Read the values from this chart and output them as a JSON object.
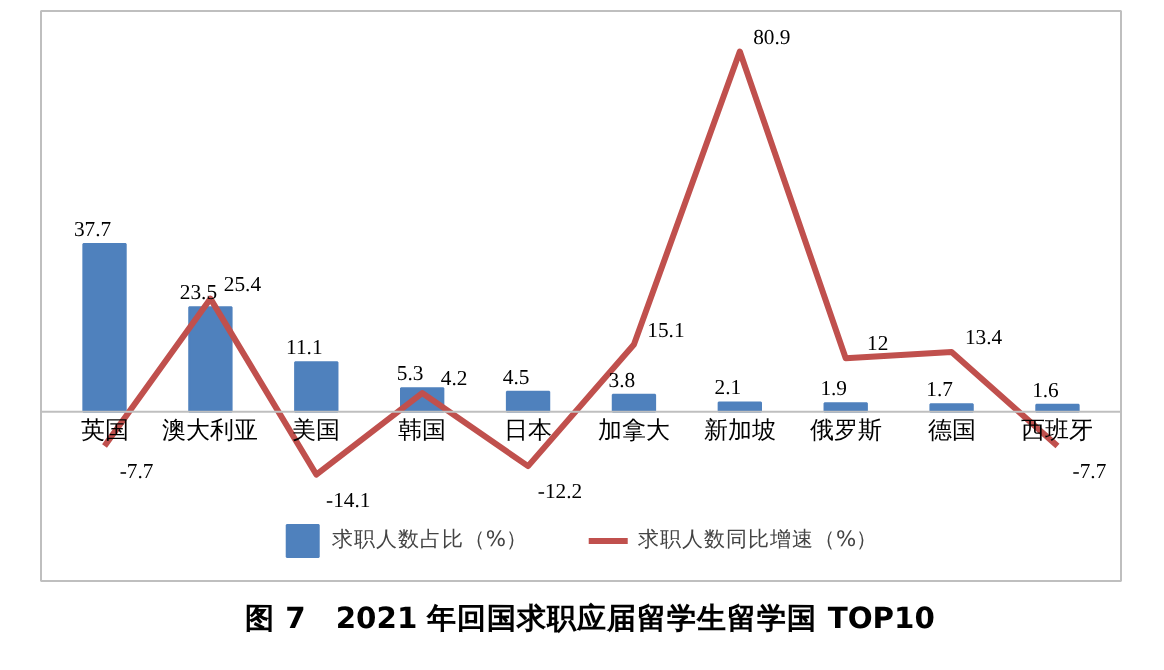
{
  "chart_data": {
    "type": "bar",
    "title": "图 7　2021 年回国求职应届留学生留学国 TOP10",
    "categories": [
      "英国",
      "澳大利亚",
      "美国",
      "韩国",
      "日本",
      "加拿大",
      "新加坡",
      "俄罗斯",
      "德国",
      "西班牙"
    ],
    "series": [
      {
        "name": "求职人数占比（%）",
        "color": "#4f81bd",
        "values": [
          37.7,
          23.5,
          11.1,
          5.3,
          4.5,
          3.8,
          2.1,
          1.9,
          1.7,
          1.6
        ]
      },
      {
        "name": "求职人数同比增速（%）",
        "color": "#c0504d",
        "type": "line",
        "values": [
          -7.7,
          25.4,
          -14.1,
          4.2,
          -12.2,
          15.1,
          80.9,
          12,
          13.4,
          -7.7
        ]
      }
    ],
    "ylim": [
      -38,
      90
    ],
    "tick_labels": "x",
    "grid": false,
    "legend": "bottom",
    "data_labels": true
  }
}
